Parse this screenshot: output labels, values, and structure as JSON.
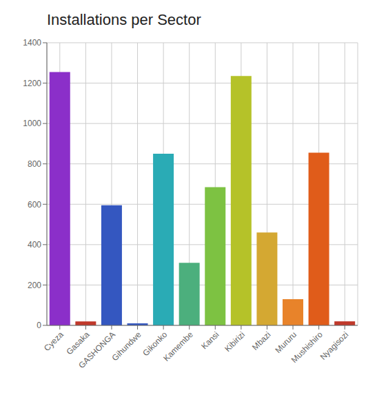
{
  "chart_data": {
    "type": "bar",
    "title": "Installations per Sector",
    "categories": [
      "Cyeza",
      "Gasaka",
      "GASHONGA",
      "Gihundwe",
      "Gikonko",
      "Kamembe",
      "Kansi",
      "Kibirizi",
      "Mbazi",
      "Mururu",
      "Mushishiro",
      "Nyagisozi"
    ],
    "values": [
      1255,
      20,
      595,
      10,
      850,
      310,
      685,
      1235,
      460,
      130,
      855,
      20
    ],
    "colors": [
      "#8B2FC9",
      "#C0392B",
      "#3457C0",
      "#3457C0",
      "#2AABB5",
      "#4CAF7D",
      "#7DC242",
      "#B5C229",
      "#D4A832",
      "#E8832A",
      "#E05C1A",
      "#C0392B"
    ],
    "ylim": [
      0,
      1400
    ],
    "yticks": [
      0,
      200,
      400,
      600,
      800,
      1000,
      1200,
      1400
    ],
    "grid": true
  }
}
